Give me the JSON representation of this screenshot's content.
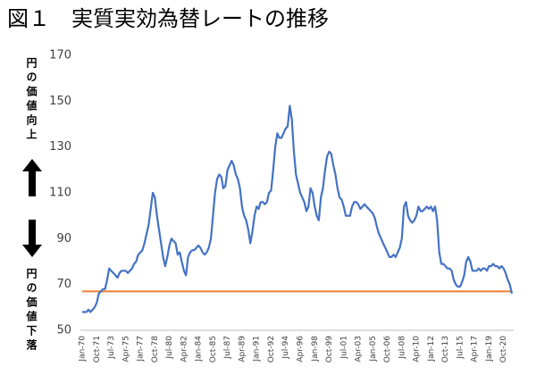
{
  "chart_data": {
    "type": "line",
    "title": "図１　実質実効為替レートの推移",
    "side_label_top": "円の価値向上",
    "side_label_bottom": "円の価値下落",
    "categories": [
      "Jan-70",
      null,
      null,
      null,
      null,
      null,
      null,
      "Oct-71",
      null,
      null,
      null,
      null,
      null,
      null,
      "Jul-73",
      null,
      null,
      null,
      null,
      null,
      null,
      "Apr-75",
      null,
      null,
      null,
      null,
      null,
      null,
      "Jan-77",
      null,
      null,
      null,
      null,
      null,
      null,
      "Oct-78",
      null,
      null,
      null,
      null,
      null,
      null,
      "Jul-80",
      null,
      null,
      null,
      null,
      null,
      null,
      "Apr-82",
      null,
      null,
      null,
      null,
      null,
      null,
      "Jan-84",
      null,
      null,
      null,
      null,
      null,
      null,
      "Oct-85",
      null,
      null,
      null,
      null,
      null,
      null,
      "Jul-87",
      null,
      null,
      null,
      null,
      null,
      null,
      "Apr-89",
      null,
      null,
      null,
      null,
      null,
      null,
      "Jan-91",
      null,
      null,
      null,
      null,
      null,
      null,
      "Oct-92",
      null,
      null,
      null,
      null,
      null,
      null,
      "Jul-94",
      null,
      null,
      null,
      null,
      null,
      null,
      "Apr-96",
      null,
      null,
      null,
      null,
      null,
      null,
      "Jan-98",
      null,
      null,
      null,
      null,
      null,
      null,
      "Oct-99",
      null,
      null,
      null,
      null,
      null,
      null,
      "Jul-01",
      null,
      null,
      null,
      null,
      null,
      null,
      "Apr-03",
      null,
      null,
      null,
      null,
      null,
      null,
      "Jan-05",
      null,
      null,
      null,
      null,
      null,
      null,
      "Oct-06",
      null,
      null,
      null,
      null,
      null,
      null,
      "Jul-08",
      null,
      null,
      null,
      null,
      null,
      null,
      "Apr-10",
      null,
      null,
      null,
      null,
      null,
      null,
      "Jan-12",
      null,
      null,
      null,
      null,
      null,
      null,
      "Oct-13",
      null,
      null,
      null,
      null,
      null,
      null,
      "Jul-15",
      null,
      null,
      null,
      null,
      null,
      null,
      "Apr-17",
      null,
      null,
      null,
      null,
      null,
      null,
      "Jan-19",
      null,
      null,
      null,
      null,
      null,
      null,
      "Oct-20",
      null,
      null,
      null,
      null
    ],
    "series": [
      {
        "color": "#4472c4",
        "values": [
          58,
          58,
          58,
          59,
          58,
          59,
          60,
          62,
          66,
          67,
          68,
          68,
          72,
          77,
          76,
          75,
          74,
          73,
          75,
          76,
          76,
          76,
          75,
          76,
          77,
          79,
          80,
          83,
          84,
          85,
          88,
          92,
          96,
          103,
          110,
          108,
          100,
          94,
          88,
          82,
          78,
          82,
          87,
          90,
          89,
          88,
          83,
          84,
          80,
          76,
          74,
          82,
          84,
          85,
          85,
          86,
          87,
          86,
          84,
          83,
          84,
          86,
          90,
          100,
          110,
          116,
          118,
          117,
          112,
          113,
          120,
          122,
          124,
          122,
          118,
          116,
          112,
          104,
          100,
          98,
          94,
          88,
          93,
          100,
          104,
          103,
          106,
          106,
          105,
          106,
          110,
          111,
          120,
          130,
          136,
          134,
          134,
          136,
          138,
          139,
          148,
          142,
          128,
          118,
          114,
          110,
          108,
          106,
          102,
          104,
          112,
          110,
          104,
          100,
          98,
          108,
          112,
          120,
          126,
          128,
          127,
          122,
          118,
          112,
          108,
          107,
          104,
          100,
          100,
          100,
          104,
          106,
          106,
          105,
          103,
          104,
          105,
          104,
          103,
          102,
          101,
          99,
          95,
          92,
          90,
          88,
          86,
          84,
          82,
          82,
          83,
          82,
          84,
          86,
          90,
          104,
          106,
          100,
          98,
          97,
          98,
          100,
          104,
          102,
          102,
          103,
          104,
          103,
          104,
          102,
          104,
          98,
          84,
          79,
          79,
          78,
          77,
          77,
          76,
          72,
          70,
          69,
          69,
          71,
          74,
          80,
          82,
          80,
          76,
          76,
          76,
          77,
          76,
          77,
          77,
          76,
          78,
          78,
          79,
          78,
          78,
          77,
          78,
          77,
          75,
          72,
          70,
          66
        ]
      }
    ],
    "reference_line": {
      "value": 67,
      "color": "#ed7d31"
    },
    "ylim": [
      50,
      170
    ],
    "yticks": [
      50,
      70,
      90,
      110,
      130,
      150,
      170
    ],
    "grid": false
  }
}
